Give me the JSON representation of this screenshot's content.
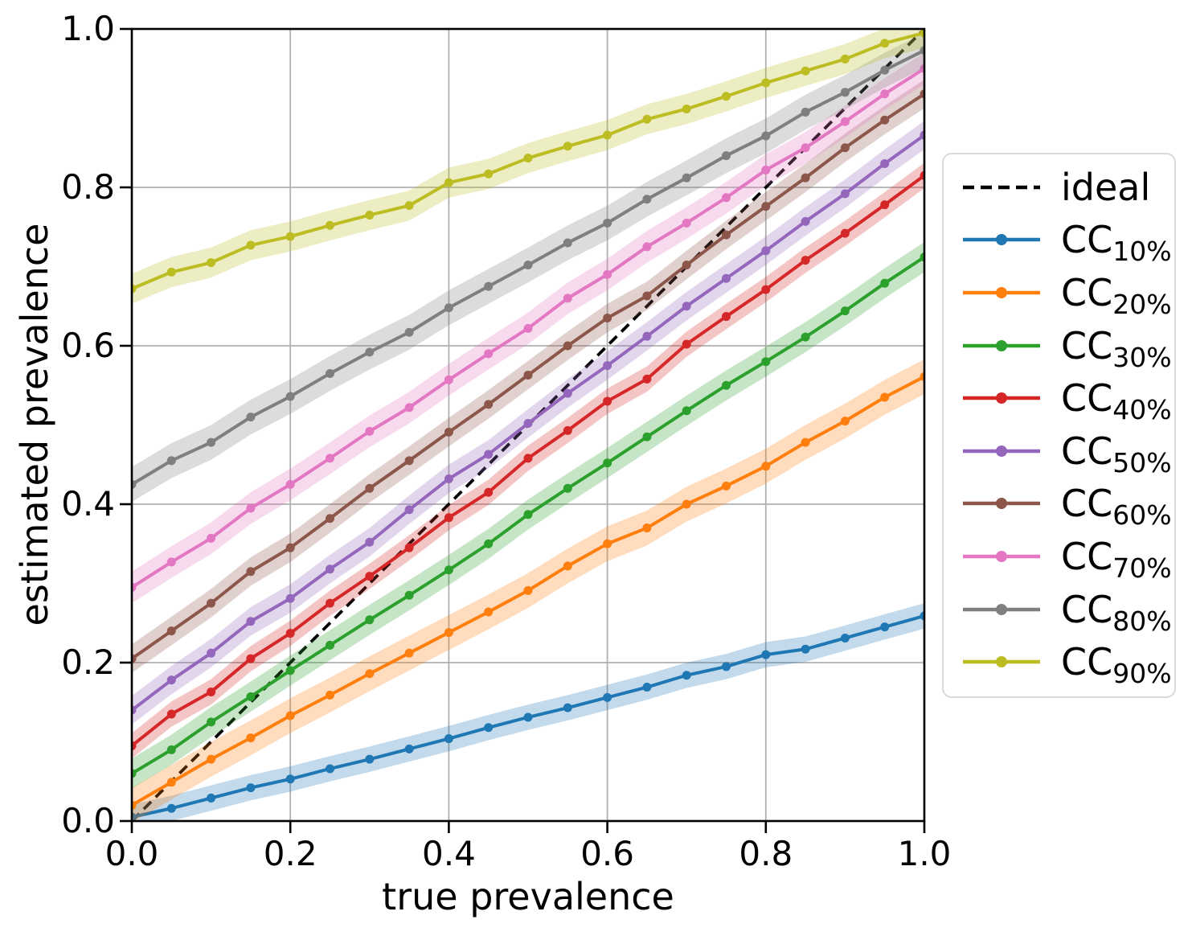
{
  "chart_data": {
    "type": "line",
    "title": "",
    "xlabel": "true prevalence",
    "ylabel": "estimated prevalence",
    "xlim": [
      0,
      1
    ],
    "ylim": [
      0,
      1
    ],
    "grid": true,
    "legend_position": "outside right",
    "tick_values": [
      0,
      0.2,
      0.4,
      0.6,
      0.8,
      1.0
    ],
    "x_tick_labels": [
      "0.0",
      "0.2",
      "0.4",
      "0.6",
      "0.8",
      "1.0"
    ],
    "y_tick_labels": [
      "0.0",
      "0.2",
      "0.4",
      "0.6",
      "0.8",
      "1.0"
    ],
    "grid_color": "#b0b0b0",
    "ideal": {
      "label": "ideal",
      "color": "#000000",
      "style": "dashed",
      "x": [
        0,
        1
      ],
      "y": [
        0,
        1
      ]
    },
    "x": [
      0,
      0.05,
      0.1,
      0.15,
      0.2,
      0.25,
      0.3,
      0.35,
      0.4,
      0.45,
      0.5,
      0.55,
      0.6,
      0.65,
      0.7,
      0.75,
      0.8,
      0.85,
      0.9,
      0.95,
      1.0
    ],
    "series": [
      {
        "label_main": "CC",
        "label_sub": "10%",
        "color": "#1f77b4",
        "band_halfwidth": 0.016,
        "values": [
          0.005,
          0.016,
          0.029,
          0.042,
          0.053,
          0.066,
          0.078,
          0.091,
          0.104,
          0.118,
          0.131,
          0.143,
          0.156,
          0.169,
          0.184,
          0.195,
          0.21,
          0.217,
          0.231,
          0.245,
          0.259
        ]
      },
      {
        "label_main": "CC",
        "label_sub": "20%",
        "color": "#ff7f0e",
        "band_halfwidth": 0.022,
        "values": [
          0.02,
          0.049,
          0.078,
          0.105,
          0.133,
          0.159,
          0.186,
          0.212,
          0.238,
          0.264,
          0.291,
          0.322,
          0.35,
          0.37,
          0.4,
          0.423,
          0.448,
          0.478,
          0.505,
          0.535,
          0.561
        ]
      },
      {
        "label_main": "CC",
        "label_sub": "30%",
        "color": "#2ca02c",
        "band_halfwidth": 0.019,
        "values": [
          0.06,
          0.09,
          0.125,
          0.157,
          0.19,
          0.222,
          0.254,
          0.285,
          0.317,
          0.35,
          0.387,
          0.42,
          0.452,
          0.485,
          0.518,
          0.55,
          0.58,
          0.611,
          0.644,
          0.679,
          0.712
        ]
      },
      {
        "label_main": "CC",
        "label_sub": "40%",
        "color": "#d62728",
        "band_halfwidth": 0.016,
        "values": [
          0.095,
          0.135,
          0.163,
          0.205,
          0.237,
          0.275,
          0.309,
          0.345,
          0.383,
          0.415,
          0.458,
          0.493,
          0.53,
          0.558,
          0.602,
          0.637,
          0.671,
          0.708,
          0.742,
          0.778,
          0.815
        ]
      },
      {
        "label_main": "CC",
        "label_sub": "50%",
        "color": "#9467bd",
        "band_halfwidth": 0.018,
        "values": [
          0.14,
          0.178,
          0.212,
          0.252,
          0.281,
          0.318,
          0.352,
          0.393,
          0.432,
          0.463,
          0.502,
          0.54,
          0.575,
          0.612,
          0.65,
          0.685,
          0.72,
          0.757,
          0.792,
          0.83,
          0.866
        ]
      },
      {
        "label_main": "CC",
        "label_sub": "60%",
        "color": "#8c564b",
        "band_halfwidth": 0.018,
        "values": [
          0.205,
          0.24,
          0.275,
          0.315,
          0.345,
          0.382,
          0.42,
          0.455,
          0.491,
          0.526,
          0.563,
          0.6,
          0.635,
          0.663,
          0.702,
          0.74,
          0.776,
          0.812,
          0.85,
          0.885,
          0.918
        ]
      },
      {
        "label_main": "CC",
        "label_sub": "70%",
        "color": "#e377c2",
        "band_halfwidth": 0.02,
        "values": [
          0.295,
          0.327,
          0.357,
          0.395,
          0.425,
          0.458,
          0.492,
          0.522,
          0.557,
          0.59,
          0.622,
          0.66,
          0.69,
          0.725,
          0.755,
          0.787,
          0.822,
          0.85,
          0.883,
          0.918,
          0.95
        ]
      },
      {
        "label_main": "CC",
        "label_sub": "80%",
        "color": "#7f7f7f",
        "band_halfwidth": 0.022,
        "values": [
          0.425,
          0.455,
          0.478,
          0.51,
          0.536,
          0.565,
          0.592,
          0.617,
          0.648,
          0.675,
          0.702,
          0.73,
          0.755,
          0.785,
          0.812,
          0.84,
          0.865,
          0.895,
          0.92,
          0.948,
          0.973
        ]
      },
      {
        "label_main": "CC",
        "label_sub": "90%",
        "color": "#bcbd22",
        "band_halfwidth": 0.019,
        "values": [
          0.672,
          0.693,
          0.705,
          0.727,
          0.738,
          0.752,
          0.765,
          0.777,
          0.806,
          0.817,
          0.837,
          0.852,
          0.866,
          0.886,
          0.899,
          0.915,
          0.932,
          0.947,
          0.962,
          0.982,
          0.995
        ]
      }
    ]
  }
}
